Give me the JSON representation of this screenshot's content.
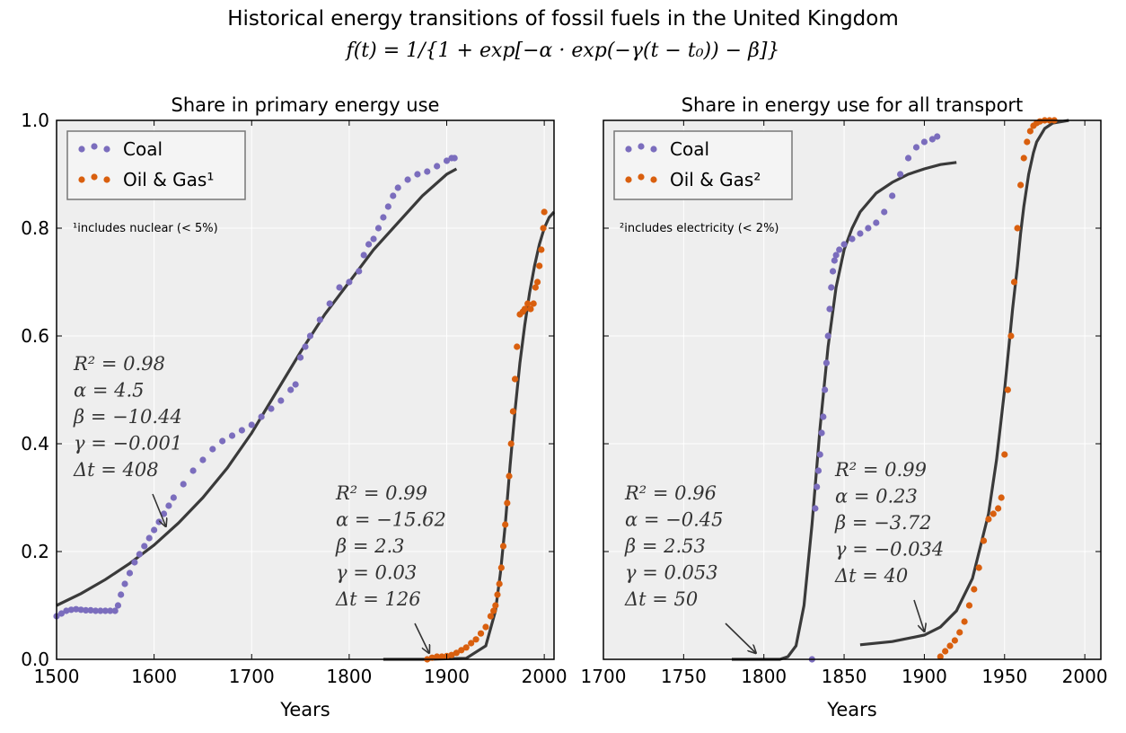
{
  "figure": {
    "title": "Historical energy transitions of fossil fuels in the United Kingdom",
    "formula": "f(t) = 1/{1 + exp[−α · exp(−γ(t − t₀)) − β]}"
  },
  "colors": {
    "coal": "#7b6dbd",
    "oil": "#d95f0e",
    "fit": "#3a3a3a",
    "bg": "#eeeeee"
  },
  "chart_data": [
    {
      "type": "scatter",
      "title": "Share in primary energy use",
      "xlabel": "Years",
      "ylabel": "",
      "xlim": [
        1500,
        2010
      ],
      "ylim": [
        0,
        1
      ],
      "xticks": [
        1500,
        1600,
        1700,
        1800,
        1900,
        2000
      ],
      "yticks": [
        0.0,
        0.2,
        0.4,
        0.6,
        0.8,
        1.0
      ],
      "grid": true,
      "legend_position": "top-left",
      "legend": [
        "Coal",
        "Oil & Gas¹"
      ],
      "note": "¹includes nuclear (< 5%)",
      "series": [
        {
          "name": "Coal",
          "kind": "points",
          "x": [
            1500,
            1505,
            1510,
            1515,
            1520,
            1525,
            1530,
            1535,
            1540,
            1545,
            1550,
            1555,
            1560,
            1563,
            1566,
            1570,
            1575,
            1580,
            1585,
            1590,
            1595,
            1600,
            1605,
            1610,
            1615,
            1620,
            1630,
            1640,
            1650,
            1660,
            1670,
            1680,
            1690,
            1700,
            1710,
            1720,
            1730,
            1740,
            1745,
            1750,
            1755,
            1760,
            1770,
            1780,
            1790,
            1800,
            1810,
            1815,
            1820,
            1825,
            1830,
            1835,
            1840,
            1845,
            1850,
            1860,
            1870,
            1880,
            1890,
            1900,
            1905,
            1908
          ],
          "y": [
            0.08,
            0.085,
            0.09,
            0.092,
            0.093,
            0.092,
            0.091,
            0.091,
            0.09,
            0.09,
            0.09,
            0.09,
            0.09,
            0.1,
            0.12,
            0.14,
            0.16,
            0.18,
            0.195,
            0.21,
            0.225,
            0.24,
            0.255,
            0.27,
            0.285,
            0.3,
            0.325,
            0.35,
            0.37,
            0.39,
            0.405,
            0.415,
            0.425,
            0.435,
            0.45,
            0.465,
            0.48,
            0.5,
            0.51,
            0.56,
            0.58,
            0.6,
            0.63,
            0.66,
            0.69,
            0.7,
            0.72,
            0.75,
            0.77,
            0.78,
            0.8,
            0.82,
            0.84,
            0.86,
            0.875,
            0.89,
            0.9,
            0.905,
            0.915,
            0.925,
            0.93,
            0.93
          ]
        },
        {
          "name": "Oil & Gas¹",
          "kind": "points",
          "x": [
            1880,
            1885,
            1890,
            1895,
            1900,
            1905,
            1910,
            1915,
            1920,
            1925,
            1930,
            1935,
            1940,
            1945,
            1948,
            1950,
            1952,
            1954,
            1956,
            1958,
            1960,
            1962,
            1964,
            1966,
            1968,
            1970,
            1972,
            1975,
            1978,
            1980,
            1983,
            1986,
            1989,
            1991,
            1993,
            1995,
            1997,
            1999,
            2000
          ],
          "y": [
            0.0,
            0.003,
            0.005,
            0.005,
            0.006,
            0.008,
            0.012,
            0.017,
            0.022,
            0.03,
            0.037,
            0.048,
            0.06,
            0.08,
            0.09,
            0.1,
            0.12,
            0.14,
            0.17,
            0.21,
            0.25,
            0.29,
            0.34,
            0.4,
            0.46,
            0.52,
            0.58,
            0.64,
            0.645,
            0.65,
            0.66,
            0.65,
            0.66,
            0.69,
            0.7,
            0.73,
            0.76,
            0.8,
            0.83
          ]
        },
        {
          "name": "",
          "kind": "fit",
          "x": [
            1500,
            1525,
            1550,
            1575,
            1600,
            1625,
            1650,
            1675,
            1700,
            1725,
            1750,
            1775,
            1800,
            1825,
            1850,
            1875,
            1900,
            1910
          ],
          "y": [
            0.1,
            0.122,
            0.148,
            0.178,
            0.212,
            0.253,
            0.3,
            0.355,
            0.42,
            0.495,
            0.57,
            0.64,
            0.7,
            0.76,
            0.81,
            0.86,
            0.9,
            0.91
          ]
        },
        {
          "name": "",
          "kind": "fit",
          "x": [
            1835,
            1880,
            1920,
            1940,
            1950,
            1955,
            1960,
            1965,
            1970,
            1975,
            1980,
            1985,
            1990,
            1995,
            2000,
            2005,
            2010
          ],
          "y": [
            0.0,
            0.0,
            0.002,
            0.025,
            0.09,
            0.16,
            0.25,
            0.36,
            0.46,
            0.55,
            0.62,
            0.68,
            0.73,
            0.77,
            0.8,
            0.82,
            0.83
          ]
        }
      ],
      "annotations": [
        {
          "lines": [
            "R² = 0.98",
            "α = 4.5",
            "β = −10.44",
            "γ = −0.001",
            "Δt = 408"
          ],
          "arrow_to": [
            1612,
            0.24
          ]
        },
        {
          "lines": [
            "R² = 0.99",
            "α = −15.62",
            "β = 2.3",
            "γ = 0.03",
            "Δt = 126"
          ],
          "arrow_to": [
            1882,
            0.005
          ]
        }
      ]
    },
    {
      "type": "scatter",
      "title": "Share in energy use for all transport",
      "xlabel": "Years",
      "ylabel": "",
      "xlim": [
        1700,
        2010
      ],
      "ylim": [
        0,
        1
      ],
      "xticks": [
        1700,
        1750,
        1800,
        1850,
        1900,
        1950,
        2000
      ],
      "yticks": [
        0.0,
        0.2,
        0.4,
        0.6,
        0.8,
        1.0
      ],
      "grid": true,
      "legend_position": "top-left",
      "legend": [
        "Coal",
        "Oil & Gas²"
      ],
      "note": "²includes electricity (< 2%)",
      "series": [
        {
          "name": "Coal",
          "kind": "points",
          "x": [
            1830,
            1832,
            1833,
            1834,
            1835,
            1836,
            1837,
            1838,
            1839,
            1840,
            1841,
            1842,
            1843,
            1844,
            1845,
            1847,
            1850,
            1855,
            1860,
            1865,
            1870,
            1875,
            1880,
            1885,
            1890,
            1895,
            1900,
            1905,
            1908
          ],
          "y": [
            0.0,
            0.28,
            0.32,
            0.35,
            0.38,
            0.42,
            0.45,
            0.5,
            0.55,
            0.6,
            0.65,
            0.69,
            0.72,
            0.74,
            0.75,
            0.76,
            0.77,
            0.78,
            0.79,
            0.8,
            0.81,
            0.83,
            0.86,
            0.9,
            0.93,
            0.95,
            0.96,
            0.965,
            0.97
          ]
        },
        {
          "name": "Oil & Gas²",
          "kind": "points",
          "x": [
            1910,
            1913,
            1916,
            1919,
            1922,
            1925,
            1928,
            1931,
            1934,
            1937,
            1940,
            1943,
            1946,
            1948,
            1950,
            1952,
            1954,
            1956,
            1958,
            1960,
            1962,
            1964,
            1966,
            1968,
            1970,
            1972,
            1975,
            1978,
            1981
          ],
          "y": [
            0.005,
            0.015,
            0.025,
            0.035,
            0.05,
            0.07,
            0.1,
            0.13,
            0.17,
            0.22,
            0.26,
            0.27,
            0.28,
            0.3,
            0.38,
            0.5,
            0.6,
            0.7,
            0.8,
            0.88,
            0.93,
            0.96,
            0.98,
            0.99,
            0.995,
            0.998,
            1.0,
            1.0,
            1.0
          ]
        },
        {
          "name": "",
          "kind": "fit",
          "x": [
            1780,
            1800,
            1810,
            1815,
            1820,
            1825,
            1830,
            1835,
            1840,
            1845,
            1850,
            1855,
            1860,
            1870,
            1880,
            1890,
            1900,
            1910,
            1920
          ],
          "y": [
            0.0,
            0.0,
            0.0,
            0.005,
            0.025,
            0.1,
            0.25,
            0.43,
            0.58,
            0.69,
            0.76,
            0.8,
            0.83,
            0.865,
            0.885,
            0.9,
            0.91,
            0.918,
            0.922
          ]
        },
        {
          "name": "",
          "kind": "fit",
          "x": [
            1860,
            1880,
            1900,
            1910,
            1920,
            1930,
            1940,
            1945,
            1950,
            1955,
            1958,
            1960,
            1962,
            1965,
            1968,
            1970,
            1975,
            1980,
            1990
          ],
          "y": [
            0.027,
            0.033,
            0.045,
            0.06,
            0.09,
            0.15,
            0.27,
            0.37,
            0.5,
            0.65,
            0.73,
            0.79,
            0.84,
            0.9,
            0.94,
            0.96,
            0.985,
            0.995,
            1.0
          ]
        }
      ],
      "annotations": [
        {
          "lines": [
            "R² = 0.96",
            "α = −0.45",
            "β = 2.53",
            "γ = 0.053",
            "Δt = 50"
          ],
          "arrow_to": [
            1795,
            0.005
          ]
        },
        {
          "lines": [
            "R² = 0.99",
            "α = 0.23",
            "β = −3.72",
            "γ = −0.034",
            "Δt = 40"
          ],
          "arrow_to": [
            1900,
            0.045
          ]
        }
      ]
    }
  ]
}
